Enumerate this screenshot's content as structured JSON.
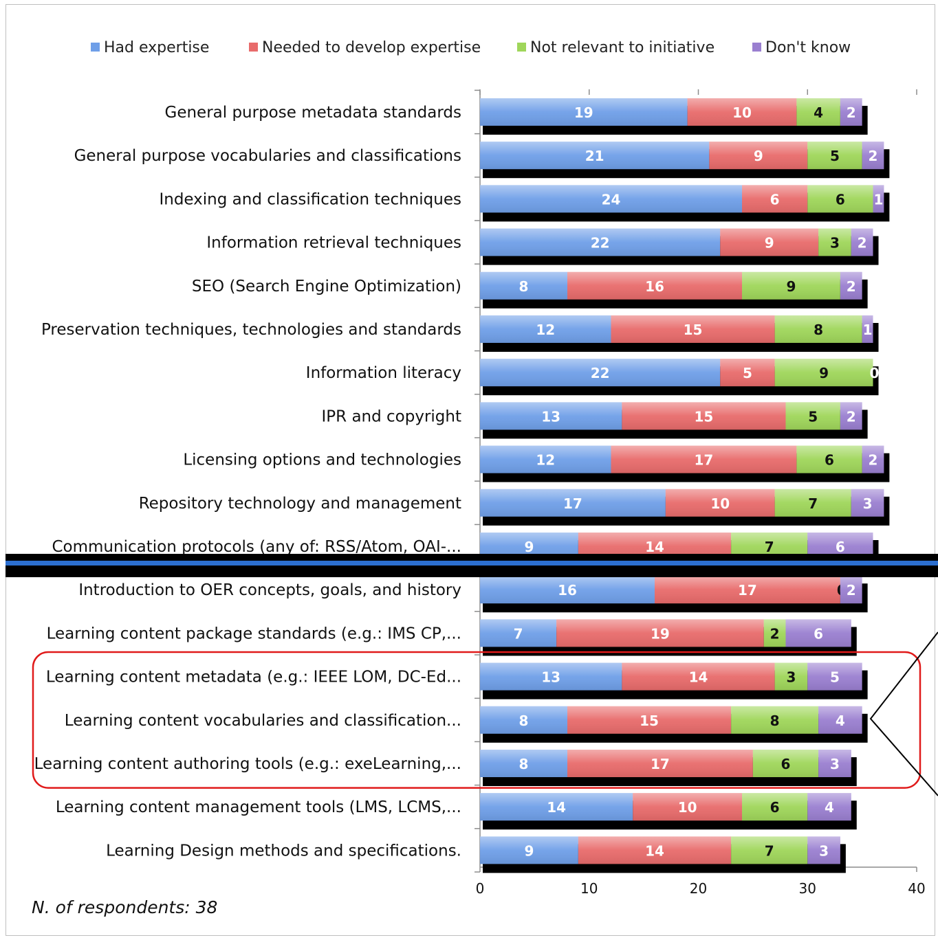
{
  "chart_data": {
    "type": "bar",
    "orientation": "horizontal",
    "stacked": true,
    "categories": [
      "General purpose metadata standards",
      "General purpose vocabularies and classifications",
      "Indexing and classification techniques",
      "Information retrieval techniques",
      "SEO (Search Engine Optimization)",
      "Preservation techniques, technologies and standards",
      "Information literacy",
      "IPR and copyright",
      "Licensing options and technologies",
      "Repository technology and management",
      "Communication protocols (any of: RSS/Atom, OAI-...",
      "Introduction to OER concepts, goals, and history",
      "Learning content package standards (e.g.: IMS CP,...",
      "Learning content metadata (e.g.: IEEE LOM, DC-Ed...",
      "Learning content vocabularies and classification...",
      "Learning content authoring tools (e.g.: exeLearning,...",
      "Learning content management tools (LMS, LCMS,...",
      "Learning Design methods and specifications."
    ],
    "series": [
      {
        "name": "Had expertise",
        "color": "#6f9fe8",
        "values": [
          19,
          21,
          24,
          22,
          8,
          12,
          22,
          13,
          12,
          17,
          9,
          16,
          7,
          13,
          8,
          8,
          14,
          9
        ]
      },
      {
        "name": "Needed to develop expertise",
        "color": "#e86b6b",
        "values": [
          10,
          9,
          6,
          9,
          16,
          15,
          5,
          15,
          17,
          10,
          14,
          17,
          19,
          14,
          15,
          17,
          10,
          14
        ]
      },
      {
        "name": "Not relevant to initiative",
        "color": "#9fd65a",
        "values": [
          4,
          5,
          6,
          3,
          9,
          8,
          9,
          5,
          6,
          7,
          7,
          0,
          2,
          3,
          8,
          6,
          6,
          7
        ]
      },
      {
        "name": "Don't know",
        "color": "#9a7fd0",
        "values": [
          2,
          2,
          1,
          2,
          2,
          1,
          0,
          2,
          2,
          3,
          6,
          2,
          6,
          5,
          4,
          3,
          4,
          3
        ]
      }
    ],
    "xlim": [
      0,
      40
    ],
    "xticks": [
      0,
      10,
      20,
      30,
      40
    ],
    "legend": "top",
    "grid": false,
    "highlighted_categories": [
      13,
      14,
      15
    ]
  },
  "footnote": "N. of respondents: 38"
}
